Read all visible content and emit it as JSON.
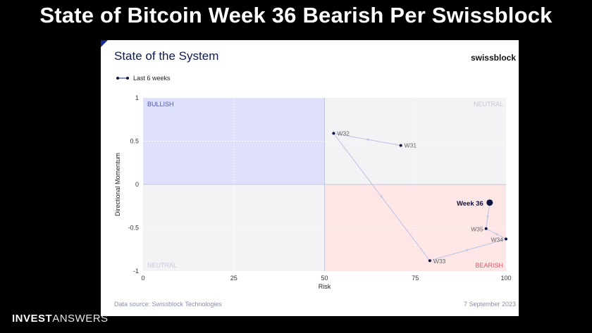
{
  "headline": "State of Bitcoin Week 36 Bearish Per Swissblock",
  "card": {
    "title": "State of the System",
    "brand": "swissblock",
    "legend_label": "Last 6 weeks",
    "source": "Data source: Swissblock Technologies",
    "date": "7 September 2023"
  },
  "footer": {
    "brand_bold": "INVEST",
    "brand_light": "ANSWERS"
  },
  "colors": {
    "bullish_fill": "#dfe0fb",
    "bearish_fill": "#fde6e6",
    "neutral_fill": "#f3f3f5",
    "path": "#c4c8e4",
    "point": "#0f1340",
    "bullish_text": "#4b55b8",
    "bearish_text": "#e05a6a",
    "neutral_text": "#c6c9d6"
  },
  "chart_data": {
    "type": "scatter",
    "xlabel": "Risk",
    "ylabel": "Directional Momentum",
    "xlim": [
      0,
      100
    ],
    "ylim": [
      -1,
      1
    ],
    "xticks": [
      "0",
      "25",
      "50",
      "75",
      "100"
    ],
    "yticks": [
      "1",
      "0.5",
      "0",
      "-0.5",
      "-1"
    ],
    "xtick_values": [
      0,
      25,
      50,
      75,
      100
    ],
    "ytick_values": [
      1,
      0.5,
      0,
      -0.5,
      -1
    ],
    "grid": true,
    "quadrants": [
      {
        "label": "BULLISH",
        "region": "top-left"
      },
      {
        "label": "NEUTRAL",
        "region": "top-right"
      },
      {
        "label": "NEUTRAL",
        "region": "bottom-left"
      },
      {
        "label": "BEARISH",
        "region": "bottom-right"
      }
    ],
    "series": [
      {
        "name": "Last 6 weeks",
        "points": [
          {
            "label": "W31",
            "x": 71,
            "y": 0.45
          },
          {
            "label": "W32",
            "x": 52.5,
            "y": 0.59
          },
          {
            "label": "W33",
            "x": 79,
            "y": -0.88
          },
          {
            "label": "W34",
            "x": 100,
            "y": -0.63
          },
          {
            "label": "W35",
            "x": 94.5,
            "y": -0.51
          },
          {
            "label": "Week 36",
            "x": 95.5,
            "y": -0.21
          }
        ]
      }
    ]
  }
}
